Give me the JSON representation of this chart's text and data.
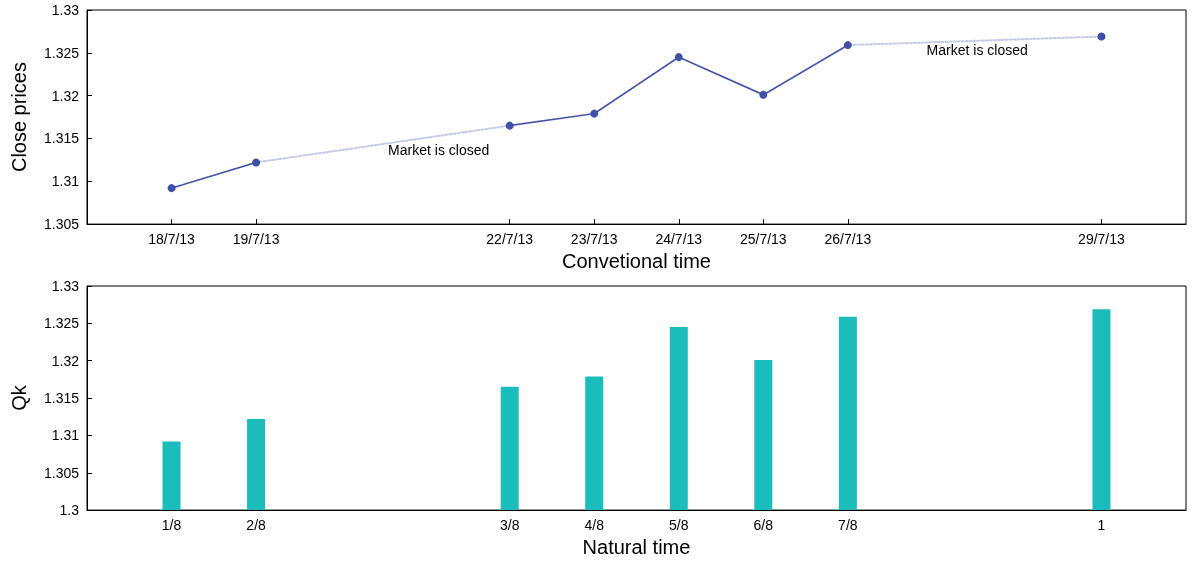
{
  "chart_data": [
    {
      "type": "line",
      "xlabel": "Convetional time",
      "ylabel": "Close prices",
      "grid": false,
      "marker": "circle",
      "xlim": [
        "--07-17",
        "--07-30"
      ],
      "xticks": [
        {
          "value": "--07-18",
          "label": "18/7/13"
        },
        {
          "value": "--07-19",
          "label": "19/7/13"
        },
        {
          "value": "--07-22",
          "label": "22/7/13"
        },
        {
          "value": "--07-23",
          "label": "23/7/13"
        },
        {
          "value": "--07-24",
          "label": "24/7/13"
        },
        {
          "value": "--07-25",
          "label": "25/7/13"
        },
        {
          "value": "--07-26",
          "label": "26/7/13"
        },
        {
          "value": "--07-29",
          "label": "29/7/13"
        }
      ],
      "ylim": [
        1.305,
        1.33
      ],
      "yticks": [
        1.305,
        1.31,
        1.315,
        1.32,
        1.325,
        1.33
      ],
      "series": [
        {
          "color": "#c5c9e6",
          "line_style": "dotted",
          "marker": "none",
          "x": [
            "--07-18",
            "--07-19",
            "--07-22",
            "--07-23",
            "--07-24",
            "--07-25",
            "--07-26",
            "--07-29"
          ],
          "values": [
            1.3092,
            1.3122,
            1.3165,
            1.3179,
            1.3245,
            1.3201,
            1.3259,
            1.3269
          ]
        },
        {
          "color": "#4050a8",
          "line_style": "solid",
          "x": [
            "--07-18",
            "--07-19"
          ],
          "values": [
            1.3092,
            1.3122
          ]
        },
        {
          "color": "#4050a8",
          "line_style": "solid",
          "x": [
            "--07-22",
            "--07-23",
            "--07-24",
            "--07-25",
            "--07-26"
          ],
          "values": [
            1.3165,
            1.3179,
            1.3245,
            1.3201,
            1.3259
          ]
        },
        {
          "color": "#4050a8",
          "line_style": "solid",
          "x": [
            "--07-29"
          ],
          "values": [
            1.3269
          ]
        }
      ],
      "annotations": [
        "Market is closed",
        "Market is closed"
      ]
    },
    {
      "type": "bar",
      "xlabel": "Natural time",
      "ylabel": "Qk",
      "grid": false,
      "categories": [
        null,
        "1/8",
        "2/8",
        null,
        null,
        "3/8",
        "4/8",
        "5/8",
        "6/8",
        "7/8",
        null,
        null,
        "1",
        null
      ],
      "ylim": [
        1.3,
        1.33
      ],
      "yticks": [
        1.3,
        1.305,
        1.31,
        1.315,
        1.32,
        1.325,
        1.33
      ],
      "color": "#1abcbc",
      "values": [
        null,
        1.3092,
        1.3122,
        null,
        null,
        1.3165,
        1.3179,
        1.3245,
        1.3201,
        1.3259,
        null,
        null,
        1.3269,
        null
      ]
    }
  ]
}
